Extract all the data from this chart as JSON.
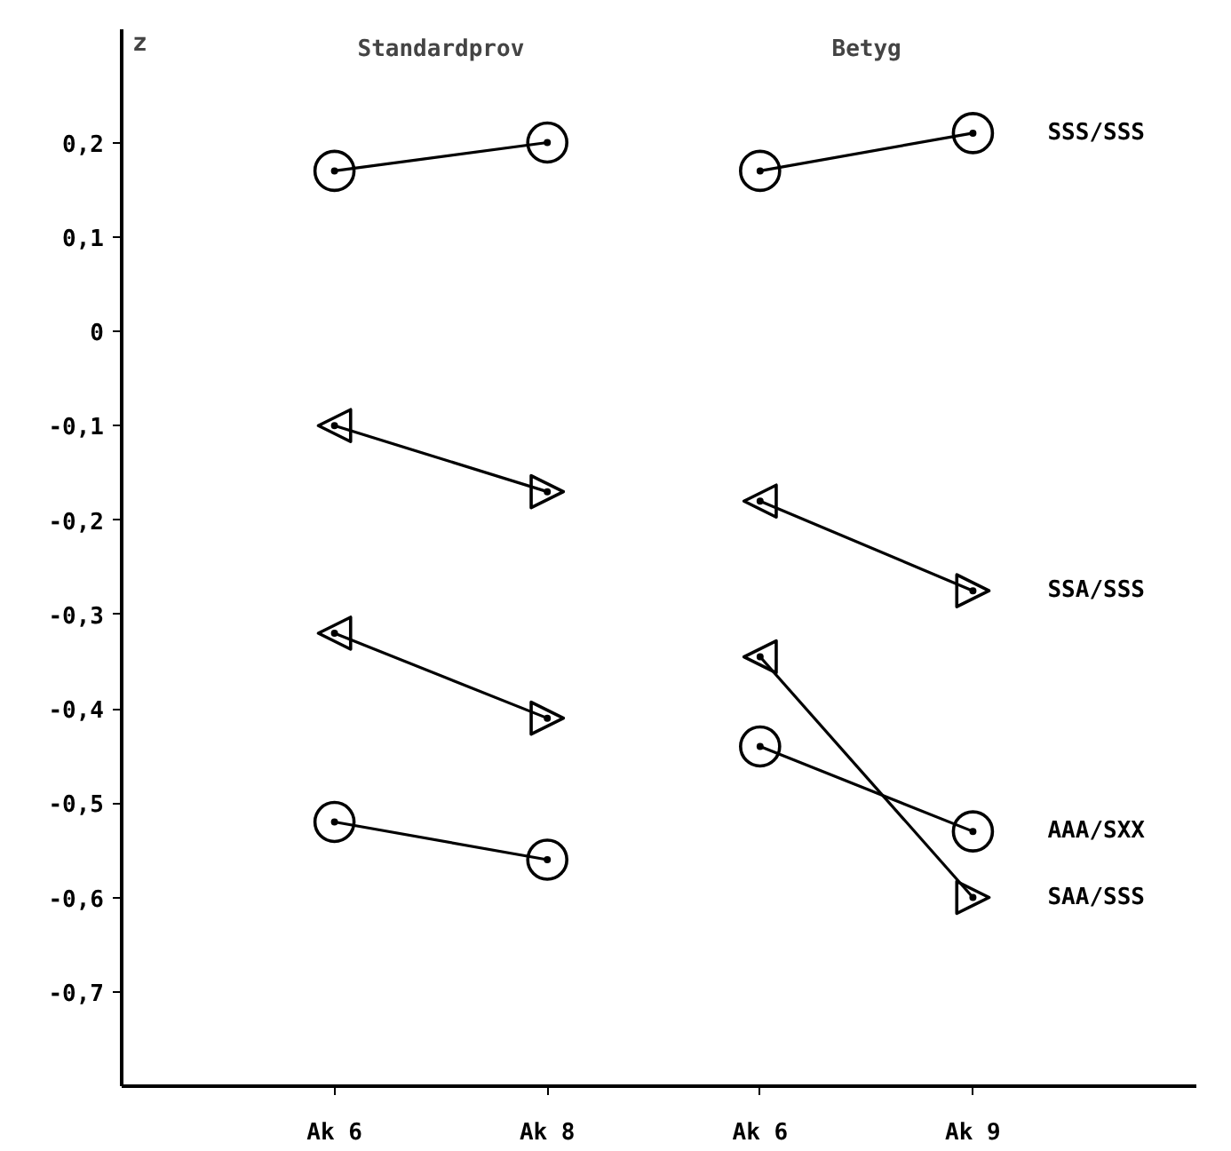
{
  "chart_data": {
    "type": "line",
    "ylabel": "z",
    "categories": [
      "Ak 6",
      "Ak 8",
      "Ak 6",
      "Ak 9"
    ],
    "ylim": [
      -0.8,
      0.32
    ],
    "yticks": [
      {
        "value": 0.2,
        "label": "0,2"
      },
      {
        "value": 0.1,
        "label": "0,1"
      },
      0,
      {
        "value": -0.1,
        "label": "-0,1"
      },
      {
        "value": -0.2,
        "label": "-0,2"
      },
      {
        "value": -0.3,
        "label": "-0,3"
      },
      {
        "value": -0.4,
        "label": "-0,4"
      },
      {
        "value": -0.5,
        "label": "-0,5"
      },
      {
        "value": -0.6,
        "label": "-0,6"
      },
      {
        "value": -0.7,
        "label": "-0,7"
      }
    ],
    "annotations": [
      "Standardprov",
      "Betyg"
    ],
    "line_style": "solid",
    "series": [
      {
        "color": "#000000",
        "marker": "circle",
        "values": [
          0.17,
          0.2,
          null,
          null
        ]
      },
      {
        "color": "#000000",
        "marker": "triangle",
        "values": [
          -0.1,
          -0.17,
          null,
          null
        ]
      },
      {
        "color": "#000000",
        "marker": "triangle",
        "values": [
          -0.32,
          -0.41,
          null,
          null
        ]
      },
      {
        "color": "#000000",
        "marker": "circle",
        "values": [
          -0.52,
          -0.56,
          null,
          null
        ]
      },
      {
        "name": "SSS/SSS",
        "color": "#000000",
        "marker": "circle",
        "values": [
          null,
          null,
          0.17,
          0.21
        ]
      },
      {
        "name": "SSA/SSS",
        "color": "#000000",
        "marker": "triangle",
        "values": [
          null,
          null,
          -0.18,
          -0.275
        ]
      },
      {
        "name": "AAA/SXX",
        "color": "#000000",
        "marker": "circle",
        "values": [
          null,
          null,
          -0.44,
          -0.53
        ]
      },
      {
        "name": "SAA/SSS",
        "color": "#000000",
        "marker": "triangle",
        "values": [
          null,
          null,
          -0.345,
          -0.6
        ]
      }
    ]
  }
}
